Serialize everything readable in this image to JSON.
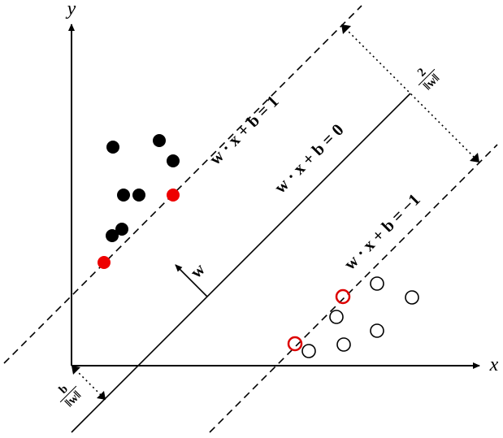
{
  "axes": {
    "x_label": "x",
    "y_label": "y"
  },
  "hyperplanes": {
    "positive": "w · x + b = 1",
    "decision": "w · x + b = 0",
    "negative": "w · x + b = −1"
  },
  "normal_label": "w",
  "margin_label": {
    "numerator": "2",
    "denominator": "‖w‖"
  },
  "offset_label": {
    "numerator": "b",
    "denominator": "‖w‖"
  }
}
